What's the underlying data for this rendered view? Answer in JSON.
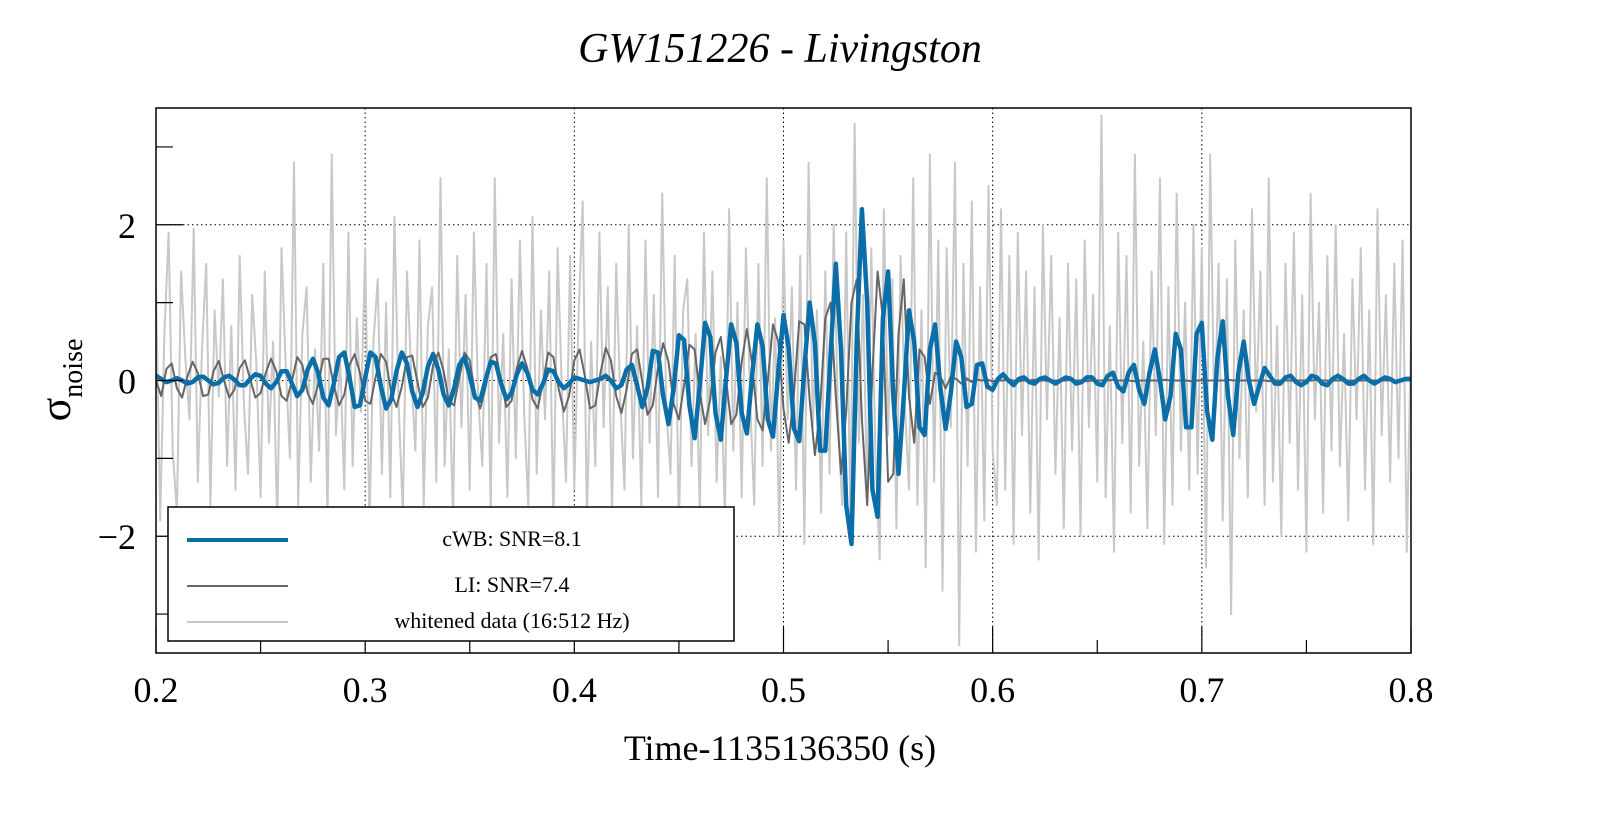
{
  "chart_data": {
    "type": "line",
    "title": "GW151226 - Livingston",
    "xlabel": "Time-1135136350 (s)",
    "ylabel": "σ",
    "ylabel_subscript": "noise",
    "xlim": [
      0.2,
      0.8
    ],
    "ylim": [
      -3.5,
      3.5
    ],
    "x_ticks": [
      0.2,
      0.3,
      0.4,
      0.5,
      0.6,
      0.7,
      0.8
    ],
    "x_tick_labels": [
      "0.2",
      "0.3",
      "0.4",
      "0.5",
      "0.6",
      "0.7",
      "0.8"
    ],
    "x_minor_ticks": [
      0.25,
      0.35,
      0.45,
      0.55,
      0.65,
      0.75
    ],
    "y_ticks": [
      -2,
      0,
      2
    ],
    "y_tick_labels": [
      "−2",
      "0",
      "2"
    ],
    "y_minor_ticks": [
      -3,
      -1,
      1,
      3
    ],
    "grid": true,
    "legend_position": "bottom-left",
    "legend": [
      {
        "label": "cWB: SNR=8.1",
        "color": "#0a6ea8"
      },
      {
        "label": "LI: SNR=7.4",
        "color": "#666666"
      },
      {
        "label": "whitened data (16:512 Hz)",
        "color": "#c8c8c8"
      }
    ],
    "series": [
      {
        "name": "whitened data (16:512 Hz)",
        "color": "#c8c8c8",
        "x_start": 0.2,
        "x_step": 0.002,
        "values": [
          1.2,
          -1.8,
          0.6,
          1.9,
          -0.9,
          -1.7,
          1.4,
          0.3,
          -0.5,
          1.95,
          -1.3,
          0.4,
          1.5,
          -1.6,
          0.9,
          -0.2,
          1.3,
          -1.1,
          0.7,
          -1.4,
          1.6,
          -0.3,
          -1.2,
          1.1,
          0.2,
          -1.5,
          1.4,
          -0.8,
          0.5,
          -1.9,
          1.7,
          0.2,
          -1.0,
          2.8,
          -1.6,
          0.6,
          1.2,
          -1.3,
          0.4,
          -0.9,
          1.5,
          -1.8,
          2.9,
          -0.7,
          0.3,
          -1.4,
          1.9,
          -1.1,
          0.8,
          -0.4,
          1.7,
          -1.9,
          0.5,
          1.3,
          -1.2,
          1.0,
          -1.5,
          2.1,
          -0.3,
          -1.7,
          1.4,
          0.1,
          -0.9,
          1.8,
          -1.6,
          0.7,
          1.2,
          -1.3,
          2.6,
          -1.1,
          0.4,
          -1.8,
          1.6,
          -0.6,
          1.1,
          -1.4,
          1.9,
          -0.2,
          -1.1,
          1.5,
          -1.7,
          2.6,
          -0.8,
          0.6,
          -1.5,
          1.3,
          -1.0,
          1.8,
          -0.4,
          -1.6,
          2.1,
          -1.2,
          0.9,
          -0.5,
          1.4,
          -1.9,
          1.7,
          -0.1,
          -1.3,
          1.6,
          -1.4,
          0.8,
          2.3,
          -1.8,
          0.5,
          -1.1,
          1.9,
          -0.6,
          1.2,
          -1.7,
          1.5,
          -0.3,
          -1.4,
          2.0,
          -1.0,
          0.7,
          -1.6,
          1.8,
          -0.8,
          1.1,
          -1.5,
          2.4,
          -0.4,
          -1.2,
          1.6,
          -1.9,
          0.9,
          1.3,
          -1.1,
          0.6,
          -1.7,
          1.9,
          -0.7,
          1.4,
          -1.3,
          0.3,
          -1.8,
          2.2,
          -0.9,
          1.0,
          -1.5,
          1.7,
          -0.2,
          -1.6,
          1.5,
          -1.1,
          2.6,
          -0.9,
          0.8,
          -2.0,
          1.8,
          -0.5,
          1.2,
          -1.4,
          1.6,
          -2.1,
          2.8,
          -0.6,
          0.9,
          -1.7,
          1.4,
          -1.2,
          2.0,
          -0.4,
          -1.6,
          1.9,
          -1.8,
          3.3,
          -0.8,
          1.1,
          -1.5,
          1.7,
          -1.0,
          -2.3,
          2.2,
          -0.7,
          1.3,
          -1.9,
          1.6,
          -0.3,
          -1.4,
          2.6,
          -1.6,
          0.9,
          -2.4,
          2.9,
          -1.3,
          1.8,
          -2.7,
          1.7,
          -0.6,
          2.8,
          -3.4,
          1.5,
          -1.1,
          2.3,
          -2.2,
          1.2,
          -1.8,
          2.5,
          -0.9,
          -1.6,
          2.2,
          -1.4,
          1.6,
          -2.1,
          1.9,
          -0.7,
          1.4,
          -1.7,
          1.2,
          -2.3,
          2.0,
          -0.5,
          1.6,
          -1.2,
          0.8,
          -1.9,
          1.5,
          -0.9,
          1.3,
          -2.0,
          1.8,
          -0.6,
          1.1,
          -1.3,
          3.4,
          -1.5,
          0.7,
          -2.2,
          1.9,
          -0.8,
          1.6,
          -1.7,
          2.9,
          -1.1,
          0.5,
          -1.9,
          1.4,
          -0.7,
          2.6,
          -2.1,
          1.2,
          -1.6,
          2.4,
          -0.9,
          1.0,
          -1.4,
          2.0,
          -1.2,
          1.7,
          -2.4,
          2.9,
          -0.6,
          1.5,
          -1.8,
          1.3,
          -3.0,
          1.8,
          -1.0,
          0.9,
          -1.5,
          2.2,
          -0.4,
          1.4,
          -1.6,
          2.6,
          -1.3,
          0.7,
          -2.0,
          1.5,
          -0.8,
          1.9,
          -1.4,
          1.1,
          -2.2,
          2.4,
          -0.5,
          1.0,
          -1.7,
          1.6,
          -0.9,
          2.0,
          -1.1,
          0.6,
          -1.8,
          1.3,
          -0.5,
          1.7,
          -1.4,
          0.9,
          -2.1,
          2.2,
          -0.7,
          1.1,
          -1.3,
          1.5,
          -1.0,
          1.8,
          -2.2,
          0.6
        ]
      },
      {
        "name": "LI: SNR=7.4",
        "color": "#666666",
        "x_start": 0.2,
        "x_step": 0.0025,
        "values": [
          0.0,
          -0.2,
          0.15,
          0.22,
          -0.1,
          -0.22,
          0.05,
          0.24,
          0.1,
          -0.2,
          -0.18,
          0.12,
          0.25,
          0.0,
          -0.22,
          -0.12,
          0.16,
          0.26,
          0.02,
          -0.22,
          -0.16,
          0.1,
          0.28,
          0.12,
          -0.2,
          -0.26,
          0.0,
          0.3,
          0.2,
          -0.16,
          -0.3,
          -0.05,
          0.28,
          0.28,
          -0.06,
          -0.32,
          -0.18,
          0.2,
          0.34,
          0.1,
          -0.26,
          -0.3,
          0.04,
          0.34,
          0.24,
          -0.16,
          -0.34,
          -0.08,
          0.3,
          0.32,
          -0.02,
          -0.34,
          -0.22,
          0.2,
          0.36,
          0.12,
          -0.26,
          -0.32,
          0.04,
          0.36,
          0.26,
          -0.16,
          -0.36,
          -0.1,
          0.3,
          0.34,
          0.0,
          -0.34,
          -0.26,
          0.16,
          0.38,
          0.16,
          -0.24,
          -0.36,
          -0.02,
          0.36,
          0.3,
          -0.1,
          -0.4,
          -0.2,
          0.26,
          0.4,
          0.06,
          -0.36,
          -0.32,
          0.1,
          0.42,
          0.26,
          -0.2,
          -0.42,
          -0.12,
          0.34,
          0.4,
          -0.02,
          -0.44,
          -0.32,
          0.16,
          0.48,
          0.24,
          -0.3,
          -0.5,
          -0.06,
          0.46,
          0.4,
          -0.16,
          -0.56,
          -0.24,
          0.36,
          0.56,
          0.02,
          -0.56,
          -0.44,
          0.24,
          0.66,
          0.22,
          -0.5,
          -0.64,
          0.0,
          0.72,
          0.5,
          -0.36,
          -0.8,
          -0.16,
          0.76,
          0.72,
          -0.24,
          -0.96,
          -0.36,
          0.8,
          1.0,
          -0.2,
          -1.2,
          -0.4,
          1.0,
          1.3,
          -0.5,
          -1.6,
          0.1,
          1.4,
          0.8,
          -1.3,
          -1.2,
          0.6,
          1.3,
          -0.2,
          -0.8,
          0.4,
          0.3,
          -0.3,
          0.1,
          0.05,
          -0.1,
          0.05,
          0.02,
          -0.04,
          0.03,
          -0.02,
          0.01,
          0.0,
          0.01,
          -0.01,
          0.0,
          0.0,
          0.01,
          0.0,
          -0.01,
          0.0,
          0.0,
          0.01,
          0.0,
          0.0,
          -0.01,
          0.0,
          0.0,
          0.0,
          0.01,
          0.0,
          0.0,
          -0.01,
          0.0,
          0.0,
          0.0,
          0.0,
          0.01,
          0.0,
          0.0,
          0.0,
          -0.01,
          0.0,
          0.0,
          0.0,
          0.0,
          0.0,
          0.01,
          0.0,
          0.0,
          0.0,
          0.0,
          -0.01,
          0.0,
          0.0,
          0.0,
          0.0,
          0.0,
          0.0,
          0.01,
          0.0,
          0.0,
          0.0,
          0.0,
          0.0,
          0.0,
          0.0,
          -0.01,
          0.0,
          0.0,
          0.0,
          0.0,
          0.0,
          0.0,
          0.0,
          0.0,
          0.01,
          0.0,
          0.0,
          0.0,
          0.0,
          0.0,
          0.0,
          0.0,
          0.0,
          0.0,
          0.0,
          0.0,
          0.0,
          0.0,
          0.0,
          0.0,
          0.0,
          0.0,
          0.0,
          0.0
        ]
      },
      {
        "name": "cWB: SNR=8.1",
        "color": "#0a6ea8",
        "x_start": 0.2,
        "x_step": 0.0025,
        "values": [
          0.06,
          0.02,
          -0.02,
          0.0,
          0.03,
          0.0,
          -0.04,
          -0.02,
          0.04,
          0.05,
          0.0,
          -0.05,
          -0.03,
          0.04,
          0.06,
          0.01,
          -0.06,
          -0.06,
          0.02,
          0.08,
          0.06,
          -0.04,
          -0.1,
          -0.02,
          0.12,
          0.12,
          -0.04,
          -0.2,
          -0.12,
          0.14,
          0.28,
          0.1,
          -0.22,
          -0.32,
          -0.04,
          0.3,
          0.36,
          0.04,
          -0.34,
          -0.32,
          0.04,
          0.36,
          0.3,
          -0.08,
          -0.36,
          -0.24,
          0.12,
          0.36,
          0.22,
          -0.14,
          -0.34,
          -0.16,
          0.18,
          0.34,
          0.14,
          -0.18,
          -0.32,
          -0.1,
          0.2,
          0.3,
          0.06,
          -0.22,
          -0.26,
          0.0,
          0.24,
          0.22,
          -0.04,
          -0.24,
          -0.16,
          0.08,
          0.22,
          0.1,
          -0.12,
          -0.18,
          -0.04,
          0.14,
          0.12,
          -0.02,
          -0.1,
          -0.04,
          0.04,
          0.02,
          0.0,
          -0.02,
          0.0,
          0.02,
          0.06,
          0.0,
          -0.1,
          -0.06,
          0.14,
          0.2,
          -0.06,
          -0.34,
          -0.1,
          0.38,
          0.36,
          -0.2,
          -0.56,
          -0.1,
          0.58,
          0.52,
          -0.32,
          -0.74,
          -0.06,
          0.74,
          0.56,
          -0.42,
          -0.76,
          0.02,
          0.72,
          0.48,
          -0.42,
          -0.68,
          0.06,
          0.72,
          0.44,
          -0.5,
          -0.72,
          0.12,
          0.84,
          0.42,
          -0.62,
          -0.78,
          0.16,
          1.0,
          0.48,
          -0.9,
          -0.9,
          0.34,
          1.5,
          0.4,
          -1.6,
          -2.1,
          0.5,
          2.2,
          1.0,
          -1.4,
          -1.75,
          0.8,
          1.4,
          -0.2,
          -1.2,
          -0.2,
          0.9,
          0.5,
          -0.6,
          -0.7,
          0.4,
          0.72,
          -0.1,
          -0.62,
          -0.16,
          0.5,
          0.3,
          -0.34,
          -0.3,
          0.2,
          0.22,
          -0.08,
          -0.12,
          0.02,
          0.08,
          0.0,
          -0.06,
          0.02,
          0.04,
          -0.02,
          -0.04,
          0.02,
          0.04,
          0.0,
          -0.04,
          0.0,
          0.04,
          0.02,
          -0.04,
          -0.02,
          0.04,
          0.04,
          -0.04,
          -0.06,
          0.06,
          0.1,
          -0.08,
          -0.14,
          0.1,
          0.2,
          -0.12,
          -0.3,
          0.1,
          0.4,
          0.0,
          -0.5,
          -0.2,
          0.6,
          0.4,
          -0.6,
          -0.6,
          0.6,
          0.74,
          -0.4,
          -0.76,
          0.3,
          0.76,
          -0.2,
          -0.7,
          0.1,
          0.5,
          0.0,
          -0.3,
          -0.06,
          0.16,
          0.06,
          -0.04,
          -0.04,
          0.04,
          0.06,
          -0.02,
          -0.06,
          -0.02,
          0.06,
          0.04,
          -0.04,
          -0.06,
          0.02,
          0.06,
          0.02,
          -0.04,
          -0.04,
          0.02,
          0.06,
          0.0,
          -0.04,
          0.0,
          0.04,
          0.02,
          -0.02,
          0.0,
          0.02,
          0.02,
          0.02
        ]
      }
    ]
  }
}
